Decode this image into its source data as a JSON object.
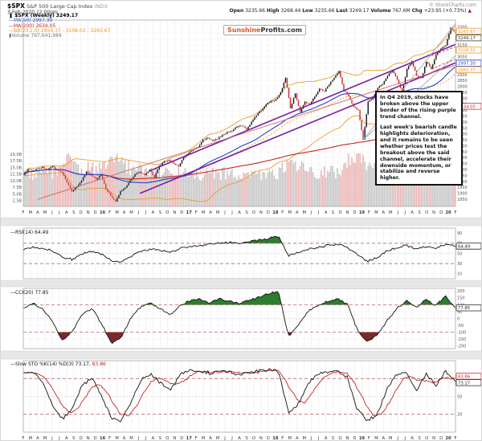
{
  "header": {
    "symbol": "$SPX",
    "name": "S&P 500 Large Cap Index",
    "exchange": "INDX",
    "datetime": "3-Feb-2020 12:00pm",
    "watermark": "© StockCharts.com",
    "quote": {
      "open_l": "Open",
      "open_v": "3235.66",
      "high_l": "High",
      "high_v": "3268.44",
      "low_l": "Low",
      "low_v": "3235.66",
      "last_l": "Last",
      "last_v": "3249.17",
      "vol_l": "Volume",
      "vol_v": "767.6M",
      "chg_l": "Chg",
      "chg_v": "+23.95 (+0.73%)",
      "arrow": "▲"
    }
  },
  "logo": {
    "part1": "Sunshine",
    "part2": "Profits.com"
  },
  "icons": {
    "dash": "—",
    "candle": "❚",
    "volume_bars": "▮"
  },
  "legend": {
    "price": "$SPX (Weekly) 3249.17",
    "ma50": "MA(50) 2997.30",
    "ma200": "MA(200) 2634.05",
    "bb": "BB(20,2.0) 2950.37 - 3108.02 - 3265.67",
    "volume": "Volume 767,641,984"
  },
  "annotation": {
    "p1": "In Q4 2019, stocks have broken above the upper border of the rising purple trend channel.",
    "p2": "Last week's bearish candle highlights deterioration, and it remains to be seen whether prices test the breakout above the said channel, accelerate their downside momentum, or stabilize and reverse higher."
  },
  "panel_labels": {
    "rsi": "RSI(14) 64.49",
    "cci": "CCI(20) 77.85",
    "sto_black": "Slow STO %K(14) %D(3) 73.17, ",
    "sto_red": "83.86"
  },
  "chart_data": {
    "type": "candlestick",
    "title": "$SPX (Weekly) 3249.17",
    "timeframe": "weekly, Feb 2015 - Feb 2020",
    "x_months": [
      "F",
      "M",
      "A",
      "M",
      "J",
      "J",
      "A",
      "S",
      "O",
      "N",
      "D",
      "16",
      "F",
      "M",
      "A",
      "M",
      "J",
      "J",
      "A",
      "S",
      "O",
      "N",
      "D",
      "17",
      "F",
      "M",
      "A",
      "M",
      "J",
      "J",
      "A",
      "S",
      "O",
      "N",
      "D",
      "18",
      "F",
      "M",
      "A",
      "M",
      "J",
      "J",
      "A",
      "S",
      "O",
      "N",
      "D",
      "19",
      "F",
      "M",
      "A",
      "M",
      "J",
      "J",
      "A",
      "S",
      "O",
      "N",
      "D",
      "20",
      "F"
    ],
    "price_axis": {
      "min": 1790,
      "max": 3360,
      "tick_min": 1850,
      "tick_max": 3300,
      "tick_step": 50
    },
    "volume_axis_b": [
      2.5,
      5,
      7.5,
      10,
      12.5,
      15,
      17.5,
      20
    ],
    "closes": [
      2060,
      2100,
      2090,
      2110,
      2120,
      2100,
      2125,
      2095,
      2080,
      1990,
      1920,
      1955,
      2010,
      2080,
      2050,
      2020,
      2060,
      1940,
      1880,
      1830,
      1917,
      1950,
      2010,
      2060,
      2080,
      2050,
      2100,
      2037,
      2130,
      2165,
      2180,
      2150,
      2130,
      2200,
      2240,
      2270,
      2290,
      2350,
      2370,
      2340,
      2360,
      2390,
      2415,
      2430,
      2460,
      2470,
      2440,
      2500,
      2560,
      2600,
      2650,
      2680,
      2690,
      2750,
      2873,
      2620,
      2740,
      2588,
      2670,
      2650,
      2720,
      2780,
      2760,
      2820,
      2875,
      2930,
      2767,
      2723,
      2632,
      2600,
      2351,
      2670,
      2707,
      2790,
      2822,
      2893,
      2940,
      2860,
      2750,
      2950,
      3014,
      2890,
      2870,
      3010,
      2950,
      3067,
      3120,
      3146,
      3295,
      3249
    ],
    "volumes_b": [
      14,
      14,
      14,
      15,
      18,
      20,
      16,
      15,
      18,
      21,
      19,
      16,
      15,
      14,
      14,
      15,
      14,
      14,
      13,
      13,
      14,
      13,
      13,
      12,
      13,
      13,
      14,
      19,
      17,
      15,
      14,
      14,
      15,
      20,
      21,
      18,
      16,
      15,
      14,
      15,
      14,
      13,
      14,
      14,
      16
    ],
    "overlays": {
      "ma50": {
        "label": "MA(50)",
        "last": 2997.3,
        "color": "#2244cc"
      },
      "ma200": {
        "label": "MA(200)",
        "last": 2634.05,
        "color": "#cc2222"
      },
      "bb": {
        "label": "BB(20,2.0)",
        "lower": 2950.37,
        "mid": 3108.02,
        "upper": 3265.67,
        "color": "#e8941a"
      }
    },
    "indicators": {
      "rsi": {
        "label": "RSI(14)",
        "last": 64.49,
        "bands": [
          70,
          30
        ],
        "ticks": [
          90,
          70,
          50,
          30,
          10
        ],
        "values": [
          58,
          62,
          60,
          55,
          42,
          38,
          50,
          55,
          48,
          36,
          33,
          45,
          54,
          58,
          56,
          52,
          60,
          64,
          66,
          68,
          70,
          72,
          70,
          74,
          76,
          80,
          84,
          46,
          52,
          58,
          62,
          66,
          68,
          62,
          48,
          34,
          42,
          55,
          62,
          66,
          58,
          64,
          60,
          68,
          64
        ]
      },
      "cci": {
        "label": "CCI(20)",
        "last": 77.85,
        "bands": [
          100,
          -100
        ],
        "ticks": [
          200,
          150,
          100,
          50,
          0,
          -50,
          -100,
          -150,
          -200
        ],
        "values": [
          80,
          110,
          70,
          -30,
          -160,
          -90,
          30,
          70,
          -40,
          -190,
          -130,
          10,
          90,
          110,
          70,
          30,
          100,
          130,
          140,
          115,
          145,
          125,
          105,
          135,
          155,
          185,
          195,
          -130,
          -50,
          50,
          95,
          125,
          145,
          105,
          -80,
          -170,
          -120,
          -20,
          70,
          130,
          85,
          140,
          95,
          165,
          78
        ]
      },
      "stoch": {
        "label": "Slow STO %K(14) %D(3)",
        "last_k": 73.17,
        "last_d": 83.86,
        "bands": [
          80,
          20
        ],
        "ticks": [
          80,
          50,
          20
        ],
        "k_values": [
          88,
          92,
          75,
          35,
          12,
          30,
          68,
          82,
          50,
          12,
          9,
          42,
          78,
          88,
          72,
          62,
          88,
          93,
          91,
          89,
          93,
          91,
          86,
          91,
          93,
          96,
          91,
          22,
          38,
          72,
          87,
          91,
          93,
          82,
          28,
          10,
          18,
          62,
          86,
          91,
          58,
          89,
          68,
          93,
          73
        ]
      }
    },
    "trendlines": [
      {
        "name": "purple-channel-lower",
        "color": "#7a1fa2",
        "width": 1.6,
        "from": {
          "i": 24,
          "p": 1900
        },
        "to": {
          "i": 89,
          "p": 3000
        }
      },
      {
        "name": "purple-channel-upper",
        "color": "#7a1fa2",
        "width": 1.6,
        "from": {
          "i": 26,
          "p": 2090
        },
        "to": {
          "i": 89,
          "p": 3155
        }
      },
      {
        "name": "red-support-line",
        "color": "#d06060",
        "width": 0.9,
        "from": {
          "i": 3,
          "p": 1850
        },
        "to": {
          "i": 89,
          "p": 2980
        }
      },
      {
        "name": "gray-fan-1",
        "color": "#aaaaaa",
        "width": 0.9,
        "from": {
          "i": 70,
          "p": 2351
        },
        "to": {
          "i": 89,
          "p": 3330
        }
      },
      {
        "name": "gray-fan-2",
        "color": "#aaaaaa",
        "width": 0.9,
        "from": {
          "i": 70,
          "p": 2351
        },
        "to": {
          "i": 89,
          "p": 3060
        }
      },
      {
        "name": "red-dashed-upper",
        "color": "#cc3333",
        "width": 0.9,
        "dash": "3,2",
        "from": {
          "i": 84,
          "p": 3060
        },
        "to": {
          "i": 89,
          "p": 3135
        }
      },
      {
        "name": "red-dashed-lower",
        "color": "#cc3333",
        "width": 0.9,
        "dash": "3,2",
        "from": {
          "i": 84,
          "p": 2950
        },
        "to": {
          "i": 89,
          "p": 3030
        }
      }
    ],
    "axis_boxes": [
      {
        "price": 3265.67,
        "label": "3265.67",
        "color": "#e8941a"
      },
      {
        "price": 3249.17,
        "label": "3249.17",
        "color": "#333333"
      },
      {
        "price": 3108.02,
        "label": "3108.02",
        "color": "#e8941a"
      },
      {
        "price": 2997.3,
        "label": "2997.30",
        "color": "#2244cc"
      },
      {
        "price": 2950.37,
        "label": "2950.37",
        "color": "#e8941a"
      },
      {
        "price": 2634.05,
        "label": "2634.05",
        "color": "#cc2222"
      }
    ]
  }
}
